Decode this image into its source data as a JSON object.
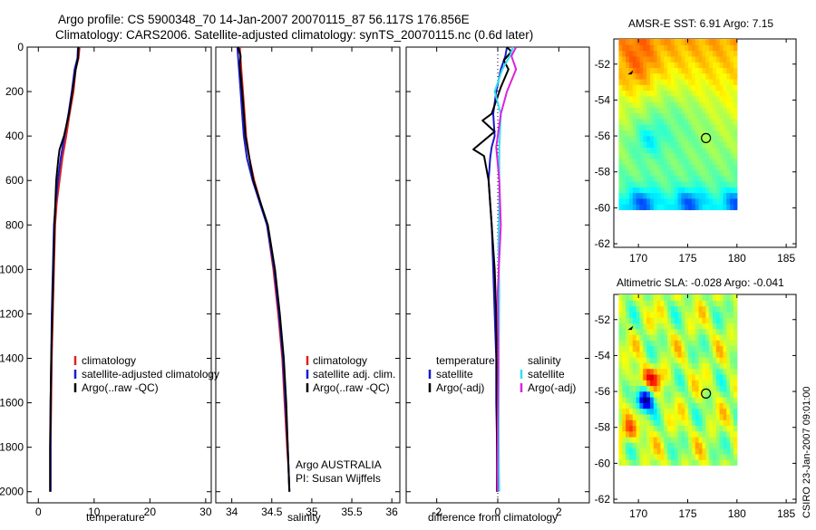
{
  "figure": {
    "title_line1": "Argo profile: CS 5900348_70 14-Jan-2007 20070115_87 56.117S 176.856E",
    "title_line2": "Climatology: CARS2006. Satellite-adjusted climatology: synTS_20070115.nc (0.6d later)",
    "side_label": "CSIRO 23-Jan-2007 09:01:00",
    "credit_line1": "Argo AUSTRALIA",
    "credit_line2": "PI: Susan Wijffels"
  },
  "colors": {
    "climatology": "#dd2222",
    "satellite": "#1a1acc",
    "argo": "#000000",
    "sal_satellite": "#33e0f0",
    "sal_argo": "#dd22dd"
  },
  "chart_data": [
    {
      "id": "temperature",
      "type": "line",
      "xlabel": "temperature",
      "ylabel": "",
      "xlim": [
        -2,
        31
      ],
      "ylim": [
        2050,
        0
      ],
      "xticks": [
        0,
        10,
        20,
        30
      ],
      "yticks": [
        0,
        200,
        400,
        600,
        800,
        1000,
        1200,
        1400,
        1600,
        1800,
        2000
      ],
      "legend": [
        "climatology",
        "satellite-adjusted climatology",
        "Argo(..raw -QC)"
      ],
      "series": [
        {
          "name": "climatology",
          "color_key": "climatology",
          "x": [
            7.4,
            7.2,
            6.7,
            6.3,
            5.6,
            5.0,
            4.3,
            3.8,
            3.3,
            3.0,
            2.8,
            2.6,
            2.4,
            2.3,
            2.2,
            2.2
          ],
          "y": [
            0,
            50,
            100,
            200,
            300,
            400,
            500,
            600,
            700,
            800,
            1000,
            1200,
            1400,
            1600,
            1800,
            2000
          ]
        },
        {
          "name": "satellite-adjusted climatology",
          "color_key": "satellite",
          "x": [
            7.1,
            7.0,
            6.5,
            6.0,
            5.4,
            4.7,
            4.0,
            3.5,
            3.1,
            2.8,
            2.6,
            2.4,
            2.3,
            2.2,
            2.2,
            2.2
          ],
          "y": [
            0,
            50,
            100,
            200,
            300,
            400,
            500,
            600,
            700,
            800,
            1000,
            1200,
            1400,
            1600,
            1800,
            2000
          ]
        },
        {
          "name": "Argo(..raw -QC)",
          "color_key": "argo",
          "x": [
            7.2,
            7.1,
            6.7,
            6.1,
            5.5,
            4.6,
            3.8,
            3.6,
            3.2,
            2.9,
            2.7,
            2.5,
            2.3,
            2.2,
            2.1,
            2.1
          ],
          "y": [
            0,
            50,
            100,
            200,
            300,
            400,
            460,
            500,
            600,
            800,
            1000,
            1200,
            1400,
            1600,
            1800,
            2000
          ]
        }
      ]
    },
    {
      "id": "salinity",
      "type": "line",
      "xlabel": "salinity",
      "ylabel": "",
      "xlim": [
        33.8,
        36.1
      ],
      "ylim": [
        2050,
        0
      ],
      "xticks": [
        34,
        34.5,
        35,
        35.5,
        36
      ],
      "legend": [
        "climatology",
        "satellite adj. clim.",
        "Argo(..raw -QC)"
      ],
      "series": [
        {
          "name": "climatology",
          "color_key": "climatology",
          "x": [
            34.1,
            34.12,
            34.14,
            34.16,
            34.18,
            34.22,
            34.28,
            34.36,
            34.44,
            34.52,
            34.58,
            34.63,
            34.66,
            34.69,
            34.71,
            34.72
          ],
          "y": [
            0,
            100,
            200,
            300,
            400,
            500,
            600,
            700,
            800,
            1000,
            1200,
            1400,
            1600,
            1800,
            1900,
            2000
          ]
        },
        {
          "name": "satellite adj. clim.",
          "color_key": "satellite",
          "x": [
            34.07,
            34.09,
            34.11,
            34.13,
            34.15,
            34.19,
            34.26,
            34.35,
            34.44,
            34.53,
            34.59,
            34.64,
            34.67,
            34.7,
            34.71,
            34.72
          ],
          "y": [
            0,
            100,
            200,
            300,
            400,
            500,
            600,
            700,
            800,
            1000,
            1200,
            1400,
            1600,
            1800,
            1900,
            2000
          ]
        },
        {
          "name": "Argo(..raw -QC)",
          "color_key": "argo",
          "x": [
            34.08,
            34.11,
            34.1,
            34.13,
            34.15,
            34.17,
            34.2,
            34.27,
            34.36,
            34.45,
            34.54,
            34.6,
            34.65,
            34.68,
            34.7,
            34.71,
            34.72
          ],
          "y": [
            0,
            40,
            80,
            200,
            300,
            400,
            460,
            600,
            700,
            800,
            1000,
            1200,
            1400,
            1600,
            1800,
            1900,
            2000
          ]
        }
      ]
    },
    {
      "id": "difference",
      "type": "line",
      "xlabel": "difference from climatology",
      "ylabel": "",
      "xlim": [
        -3,
        3
      ],
      "ylim": [
        2050,
        0
      ],
      "xticks": [
        -2,
        0,
        2
      ],
      "legend_temp_header": "temperature",
      "legend_sal_header": "salinity",
      "legend": [
        "satellite",
        "Argo(-adj)",
        "satellite",
        "Argo(-adj)"
      ],
      "series": [
        {
          "name": "temperature satellite",
          "color_key": "satellite",
          "x": [
            0.3,
            0.25,
            0.1,
            -0.05,
            -0.15,
            -0.1,
            -0.2,
            -0.25,
            -0.3,
            -0.25,
            -0.2,
            -0.15,
            -0.1,
            -0.05,
            -0.05,
            -0.02,
            -0.02
          ],
          "y": [
            0,
            40,
            100,
            200,
            300,
            400,
            450,
            500,
            600,
            700,
            800,
            1000,
            1200,
            1400,
            1600,
            1800,
            2000
          ]
        },
        {
          "name": "temperature Argo(-adj)",
          "color_key": "argo",
          "x": [
            0.3,
            0.45,
            0.2,
            0.35,
            0.1,
            -0.2,
            -0.5,
            -0.1,
            -0.8,
            -0.45,
            -0.3,
            -0.25,
            -0.2,
            -0.1,
            -0.05,
            -0.03,
            -0.02
          ],
          "y": [
            0,
            20,
            60,
            100,
            180,
            300,
            330,
            380,
            460,
            490,
            600,
            700,
            800,
            1000,
            1200,
            1600,
            2000
          ]
        },
        {
          "name": "salinity satellite",
          "color_key": "sal_satellite",
          "x": [
            0.5,
            0.4,
            0.15,
            -0.1,
            0.1,
            0.05,
            0.05,
            0.02,
            0.05,
            0.03,
            0.03,
            0.04,
            0.05
          ],
          "y": [
            0,
            40,
            100,
            200,
            300,
            450,
            700,
            900,
            1100,
            1400,
            1700,
            1900,
            2000
          ]
        },
        {
          "name": "salinity Argo(-adj)",
          "color_key": "sal_argo",
          "x": [
            0.6,
            0.45,
            0.6,
            0.3,
            0.1,
            -0.05,
            0.05,
            0.1,
            0.0,
            0.02,
            0.0,
            -0.01,
            0.0
          ],
          "y": [
            0,
            40,
            100,
            200,
            300,
            450,
            600,
            800,
            1100,
            1400,
            1700,
            1900,
            2000
          ]
        }
      ]
    },
    {
      "id": "sst_map",
      "type": "heatmap",
      "title": "AMSR-E SST: 6.91 Argo: 7.15",
      "xlim": [
        167.5,
        186
      ],
      "ylim": [
        -62.2,
        -50.6
      ],
      "xticks": [
        170,
        175,
        180,
        185
      ],
      "yticks": [
        -52,
        -54,
        -56,
        -58,
        -60,
        -62
      ],
      "data_extent": {
        "lon": [
          168,
          180
        ],
        "lat": [
          -60.1,
          -50.6
        ]
      },
      "float_marker": {
        "lon": 176.856,
        "lat": -56.117
      },
      "prev_marker": {
        "lon": 169.3,
        "lat": -52.5
      }
    },
    {
      "id": "sla_map",
      "type": "heatmap",
      "title": "Altimetric SLA: -0.028 Argo: -0.041",
      "xlim": [
        167.5,
        186
      ],
      "ylim": [
        -62.2,
        -50.6
      ],
      "xticks": [
        170,
        175,
        180,
        185
      ],
      "yticks": [
        -52,
        -54,
        -56,
        -58,
        -60,
        -62
      ],
      "data_extent": {
        "lon": [
          168,
          180
        ],
        "lat": [
          -60.1,
          -50.6
        ]
      },
      "float_marker": {
        "lon": 176.856,
        "lat": -56.117
      },
      "prev_marker": {
        "lon": 169.3,
        "lat": -52.5
      }
    }
  ]
}
